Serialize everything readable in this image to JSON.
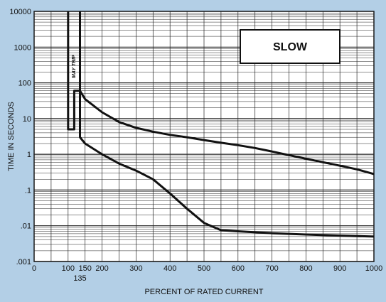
{
  "colors": {
    "background": "#b3cfe6",
    "plot": "#ffffff",
    "ink": "#111111",
    "grid": "#222222"
  },
  "chart_data": {
    "type": "line",
    "xlabel": "PERCENT OF RATED CURRENT",
    "ylabel": "TIME IN SECONDS",
    "xlim": [
      0,
      1000
    ],
    "ylim": [
      0.001,
      10000
    ],
    "yscale": "log",
    "grid": true,
    "x_ticks": [
      0,
      100,
      150,
      200,
      300,
      400,
      500,
      600,
      700,
      800,
      900,
      1000
    ],
    "x_tick_labels": [
      "0",
      "100",
      "150",
      "200",
      "300",
      "400",
      "500",
      "600",
      "700",
      "800",
      "900",
      "1000"
    ],
    "x_extra_tick": {
      "value": 135,
      "label": "135"
    },
    "y_ticks": [
      0.001,
      0.01,
      0.1,
      1,
      10,
      100,
      1000,
      10000
    ],
    "y_tick_labels": [
      ".001",
      ".01",
      ".1",
      "1",
      "10",
      "100",
      "1000",
      "10000"
    ],
    "legend_box": {
      "text": "SLOW",
      "placement": "top-right"
    },
    "annotation": {
      "text": "MAY TRIP"
    },
    "series": [
      {
        "role": "upper",
        "x": [
          100,
          100,
          118,
          118,
          135,
          150,
          200,
          250,
          300,
          350,
          400,
          450,
          500,
          550,
          600,
          650,
          700,
          750,
          800,
          850,
          900,
          950,
          1000
        ],
        "y": [
          10000,
          5,
          5,
          60,
          60,
          35,
          15,
          8,
          5.5,
          4.3,
          3.5,
          3.0,
          2.5,
          2.1,
          1.8,
          1.5,
          1.2,
          0.95,
          0.75,
          0.6,
          0.48,
          0.38,
          0.28
        ]
      },
      {
        "role": "lower",
        "x": [
          135,
          135,
          150,
          200,
          250,
          300,
          350,
          400,
          450,
          500,
          550,
          600,
          700,
          800,
          900,
          1000
        ],
        "y": [
          10000,
          3,
          2,
          1,
          0.55,
          0.35,
          0.2,
          0.08,
          0.03,
          0.012,
          0.0075,
          0.007,
          0.0062,
          0.0057,
          0.0053,
          0.005
        ]
      },
      {
        "role": "may-trip-dashed",
        "x": [
          118,
          118
        ],
        "y": [
          60,
          5
        ]
      }
    ]
  }
}
